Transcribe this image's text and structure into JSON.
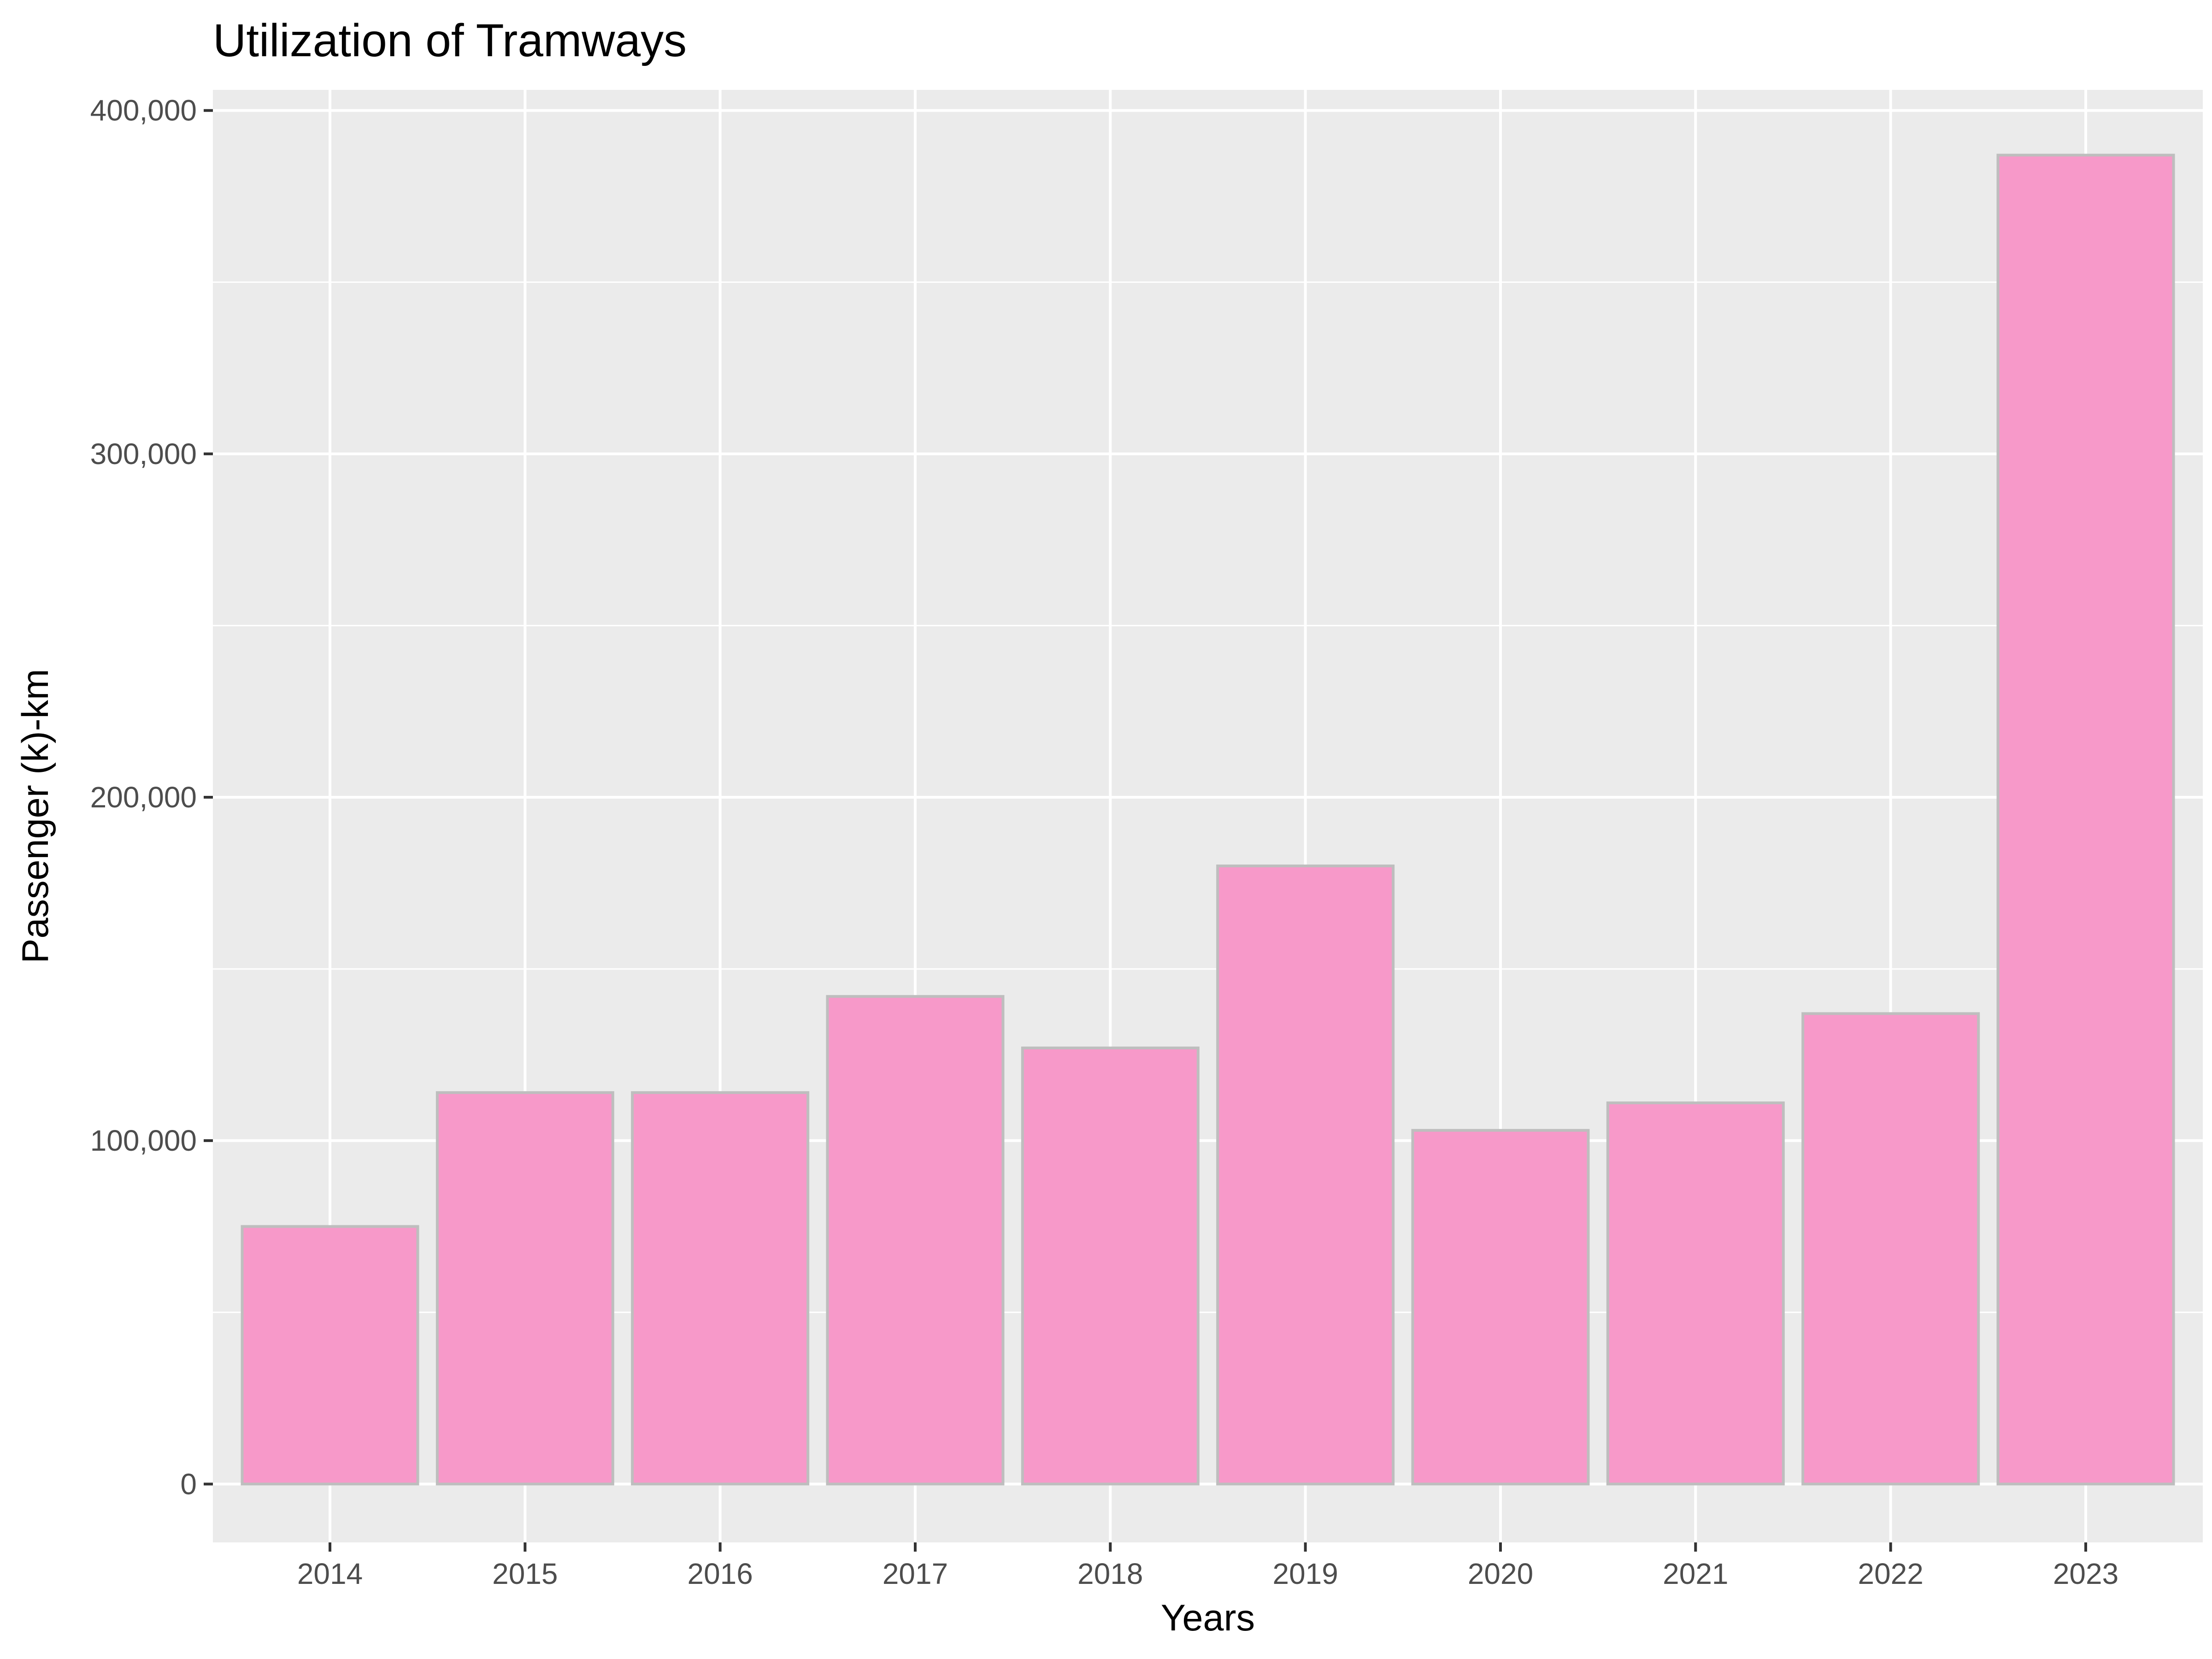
{
  "chart_data": {
    "type": "bar",
    "title": "Utilization of Tramways",
    "xlabel": "Years",
    "ylabel": "Passenger (k)-km",
    "categories": [
      "2014",
      "2015",
      "2016",
      "2017",
      "2018",
      "2019",
      "2020",
      "2021",
      "2022",
      "2023"
    ],
    "values": [
      75000,
      114000,
      114000,
      142000,
      127000,
      180000,
      103000,
      111000,
      137000,
      387000
    ],
    "ylim": [
      -17000,
      406000
    ],
    "yticks": [
      0,
      100000,
      200000,
      300000,
      400000
    ],
    "ytick_labels": [
      "0",
      "100,000",
      "200,000",
      "300,000",
      "400,000"
    ],
    "grid": true,
    "legend": "none",
    "colors": {
      "bar_fill": "#f799c9",
      "bar_outline": "#bebebe",
      "panel_background": "#ebebeb",
      "grid": "#ffffff",
      "tick_text": "#4d4d4d"
    }
  }
}
